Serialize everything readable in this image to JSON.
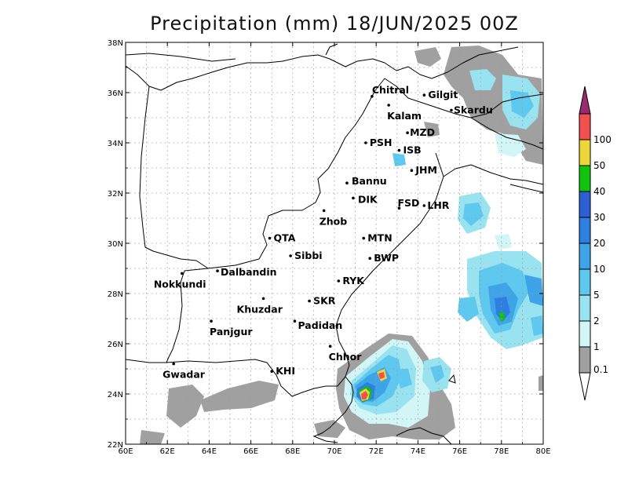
{
  "title": "Precipitation (mm) 18/JUN/2025 00Z",
  "map": {
    "lon_range": [
      60,
      80
    ],
    "lat_range": [
      22,
      38
    ],
    "lon_ticks": [
      "60E",
      "62E",
      "64E",
      "66E",
      "68E",
      "70E",
      "72E",
      "74E",
      "76E",
      "78E",
      "80E"
    ],
    "lat_ticks": [
      "22N",
      "24N",
      "26N",
      "28N",
      "30N",
      "32N",
      "34N",
      "36N",
      "38N"
    ],
    "grid": "dotted"
  },
  "cities": [
    {
      "name": "Chitral",
      "lon": 71.8,
      "lat": 35.85
    },
    {
      "name": "Gilgit",
      "lon": 74.3,
      "lat": 35.9
    },
    {
      "name": "Kalam",
      "lon": 72.6,
      "lat": 35.5
    },
    {
      "name": "Skardu",
      "lon": 75.6,
      "lat": 35.3
    },
    {
      "name": "MZD",
      "lon": 73.5,
      "lat": 34.4
    },
    {
      "name": "PSH",
      "lon": 71.5,
      "lat": 34.0
    },
    {
      "name": "ISB",
      "lon": 73.1,
      "lat": 33.7
    },
    {
      "name": "JHM",
      "lon": 73.7,
      "lat": 32.9
    },
    {
      "name": "Bannu",
      "lon": 70.6,
      "lat": 32.4
    },
    {
      "name": "DIK",
      "lon": 70.9,
      "lat": 31.8
    },
    {
      "name": "FSD",
      "lon": 73.1,
      "lat": 31.4
    },
    {
      "name": "LHR",
      "lon": 74.3,
      "lat": 31.5
    },
    {
      "name": "Zhob",
      "lon": 69.5,
      "lat": 31.3
    },
    {
      "name": "QTA",
      "lon": 66.9,
      "lat": 30.2
    },
    {
      "name": "MTN",
      "lon": 71.4,
      "lat": 30.2
    },
    {
      "name": "Sibbi",
      "lon": 67.9,
      "lat": 29.5
    },
    {
      "name": "BWP",
      "lon": 71.7,
      "lat": 29.4
    },
    {
      "name": "Nokkundi",
      "lon": 62.7,
      "lat": 28.8
    },
    {
      "name": "Dalbandin",
      "lon": 64.4,
      "lat": 28.9
    },
    {
      "name": "RYK",
      "lon": 70.2,
      "lat": 28.5
    },
    {
      "name": "Khuzdar",
      "lon": 66.6,
      "lat": 27.8
    },
    {
      "name": "SKR",
      "lon": 68.8,
      "lat": 27.7
    },
    {
      "name": "Panjgur",
      "lon": 64.1,
      "lat": 26.9
    },
    {
      "name": "Padidan",
      "lon": 68.1,
      "lat": 26.9
    },
    {
      "name": "Chhor",
      "lon": 69.8,
      "lat": 25.9
    },
    {
      "name": "Gwadar",
      "lon": 62.3,
      "lat": 25.2
    },
    {
      "name": "KHI",
      "lon": 67.0,
      "lat": 24.9
    }
  ],
  "colorbar": {
    "labels": [
      "0.1",
      "1",
      "2",
      "5",
      "10",
      "20",
      "30",
      "40",
      "50",
      "100"
    ],
    "colors": [
      "#a0a0a0",
      "#d2f5f5",
      "#98e3ef",
      "#5fc8ee",
      "#3fa3e8",
      "#2d7fe0",
      "#2c5fd2",
      "#0fc30f",
      "#ecd73a",
      "#f05050"
    ],
    "top_arrow_color": "#9a2a6e",
    "bottom_arrow_color": "#ffffff"
  }
}
